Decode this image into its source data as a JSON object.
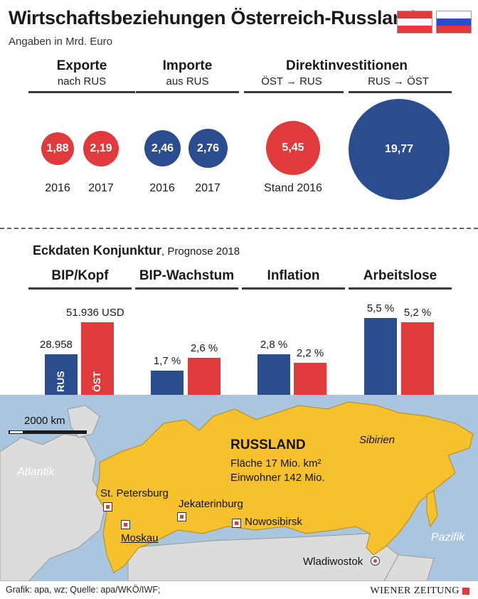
{
  "header": {
    "title": "Wirtschaftsbeziehungen Österreich-Russland",
    "subtitle": "Angaben in Mrd. Euro"
  },
  "colors": {
    "austria": "#e03a3c",
    "russia": "#2a4d8f"
  },
  "trade": {
    "exports": {
      "title": "Exporte",
      "sub": "nach RUS",
      "v2016": "1,88",
      "v2017": "2,19"
    },
    "imports": {
      "title": "Importe",
      "sub": "aus RUS",
      "v2016": "2,46",
      "v2017": "2,76"
    },
    "year2016": "2016",
    "year2017": "2017",
    "fdi": {
      "title": "Direktinvestitionen",
      "sub_left": "ÖST → RUS",
      "sub_right": "RUS → ÖST",
      "value_left": "5,45",
      "value_right": "19,77",
      "stand": "Stand 2016"
    }
  },
  "konjunktur": {
    "title": "Eckdaten Konjunktur",
    "note": ", Prognose 2018",
    "bip_kopf": {
      "title": "BIP/Kopf",
      "rus_label": "28.958",
      "ost_label": "51.936 USD",
      "rus_inbar": "RUS",
      "ost_inbar": "ÖST"
    },
    "bip_wachstum": {
      "title": "BIP-Wachstum",
      "rus_label": "1,7 %",
      "ost_label": "2,6 %"
    },
    "inflation": {
      "title": "Inflation",
      "rus_label": "2,8 %",
      "ost_label": "2,2 %"
    },
    "arbeitslose": {
      "title": "Arbeitslose",
      "rus_label": "5,5 %",
      "ost_label": "5,2 %"
    }
  },
  "chart_data": [
    {
      "type": "bar",
      "title": "Exporte",
      "categories": [
        "2016",
        "2017"
      ],
      "values": [
        1.88,
        2.19
      ]
    },
    {
      "type": "bar",
      "title": "Importe",
      "categories": [
        "2016",
        "2017"
      ],
      "values": [
        2.46,
        2.76
      ]
    },
    {
      "type": "bar",
      "title": "Direktinvestitionen",
      "categories": [
        "ÖST → RUS",
        "RUS → ÖST"
      ],
      "values": [
        5.45,
        19.77
      ]
    },
    {
      "type": "bar",
      "title": "BIP/Kopf",
      "categories": [
        "RUS",
        "ÖST"
      ],
      "values": [
        28958,
        51936
      ]
    },
    {
      "type": "bar",
      "title": "BIP-Wachstum",
      "categories": [
        "RUS",
        "ÖST"
      ],
      "values": [
        1.7,
        2.6
      ]
    },
    {
      "type": "bar",
      "title": "Inflation",
      "categories": [
        "RUS",
        "ÖST"
      ],
      "values": [
        2.8,
        2.2
      ]
    },
    {
      "type": "bar",
      "title": "Arbeitslose",
      "categories": [
        "RUS",
        "ÖST"
      ],
      "values": [
        5.5,
        5.2
      ]
    }
  ],
  "map": {
    "scale": "2000 km",
    "country": "RUSSLAND",
    "area": "Fläche   17 Mio. km²",
    "population": "Einwohner 142 Mio.",
    "region": "Sibirien",
    "sea_west": "Atlantik",
    "sea_east": "Pazifik",
    "cities": {
      "stpetersburg": "St. Petersburg",
      "moskau": "Moskau",
      "jekaterinburg": "Jekaterinburg",
      "nowosibirsk": "Nowosibirsk",
      "wladiwostok": "Wladiwostok"
    }
  },
  "footer": {
    "source": "Grafik: apa, wz; Quelle: apa/WKÖ/IWF;",
    "brand": "WIENER ZEITUNG"
  }
}
